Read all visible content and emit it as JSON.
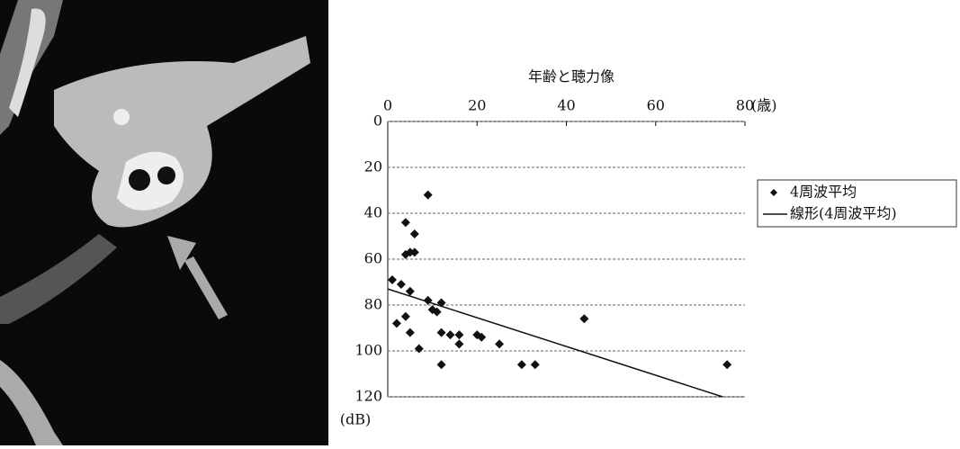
{
  "chart_data": {
    "type": "scatter",
    "title": "年齢と聴力像",
    "x_label": "(歳)",
    "y_label": "(dB)",
    "xlim": [
      0,
      80
    ],
    "xticks": [
      0,
      20,
      40,
      60,
      80
    ],
    "ylim": [
      0,
      120
    ],
    "yticks": [
      0,
      20,
      40,
      60,
      80,
      100,
      120
    ],
    "y_inverted": true,
    "grid": true,
    "series": [
      {
        "name": "4周波平均",
        "color": "#111111",
        "marker": "diamond",
        "x": [
          1,
          2,
          3,
          4,
          4,
          4,
          5,
          5,
          5,
          6,
          6,
          7,
          9,
          9,
          10,
          11,
          12,
          12,
          12,
          14,
          16,
          16,
          20,
          21,
          25,
          30,
          33,
          44,
          76
        ],
        "values": [
          69,
          88,
          71,
          85,
          58,
          44,
          57,
          74,
          92,
          57,
          49,
          99,
          32,
          78,
          82,
          83,
          79,
          92,
          106,
          93,
          93,
          97,
          93,
          94,
          97,
          106,
          106,
          86,
          106
        ]
      },
      {
        "name": "線形(4周波平均)",
        "color": "#111111",
        "marker": "line",
        "x": [
          0,
          75
        ],
        "values": [
          73,
          120
        ]
      }
    ]
  }
}
